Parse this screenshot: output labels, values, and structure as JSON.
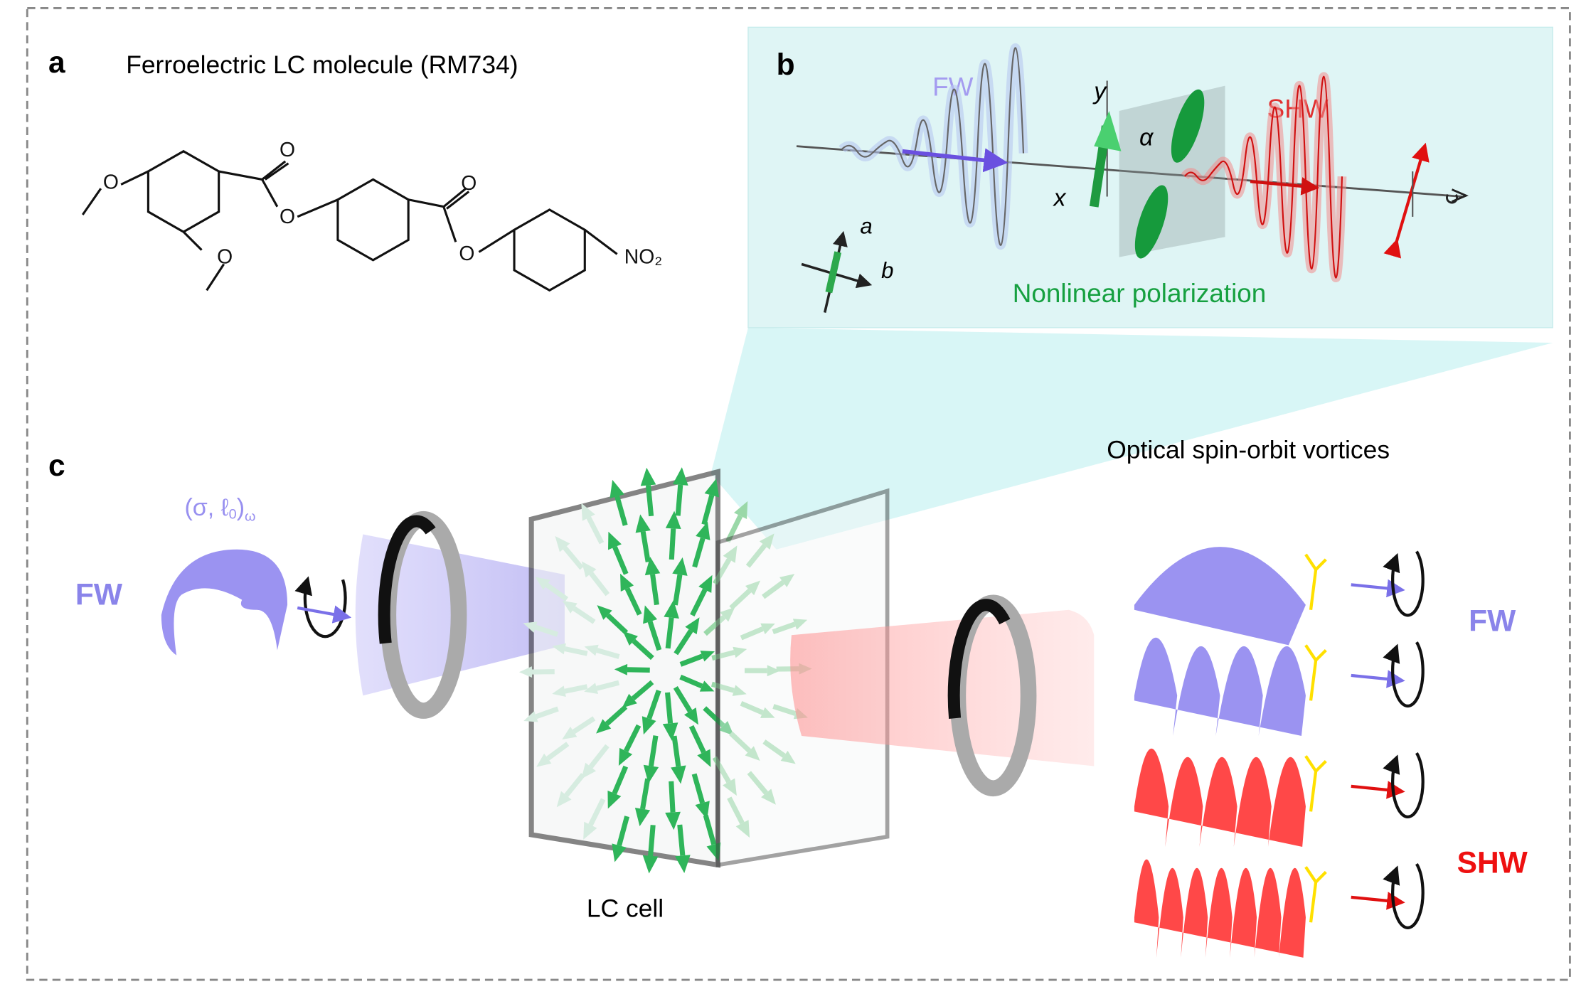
{
  "panel_a": {
    "label": "a",
    "title": "Ferroelectric LC molecule (RM734)",
    "atoms": [
      "O",
      "O",
      "O",
      "O",
      "O",
      "O",
      "NO₂"
    ]
  },
  "panel_b": {
    "label": "b",
    "fundamental": "FW",
    "harmonic": "SHW",
    "axis_y": "y",
    "axis_x": "x",
    "angle": "α",
    "molecule_axis_a": "a",
    "molecule_axis_b": "b",
    "caption": "Nonlinear polarization"
  },
  "panel_c": {
    "label": "c",
    "beam_label": {
      "main": "(σ, ℓ",
      "sub_index": "0",
      "close": ")",
      "sub_freq": "ω"
    },
    "input_label": "FW",
    "cell_label": "LC cell",
    "output_title": "Optical spin-orbit vortices",
    "output_fw": "FW",
    "output_shw": "SHW"
  }
}
